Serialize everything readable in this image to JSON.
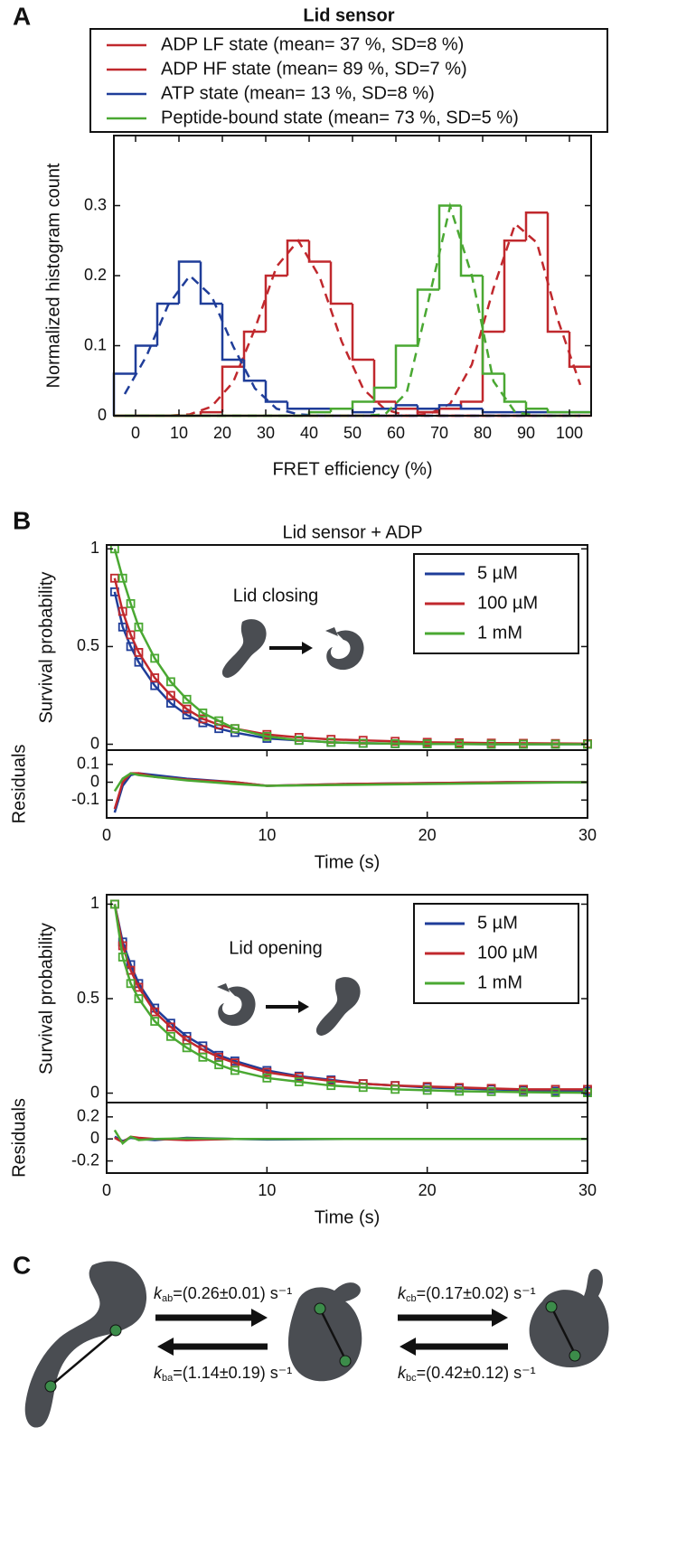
{
  "panel_labels": [
    "A",
    "B",
    "C"
  ],
  "chart_data": [
    {
      "type": "histogram",
      "title": "Lid sensor",
      "xlabel": "FRET efficiency (%)",
      "ylabel": "Normalized histogram count",
      "bins": [
        -5,
        0,
        5,
        10,
        15,
        20,
        25,
        30,
        35,
        40,
        45,
        50,
        55,
        60,
        65,
        70,
        75,
        80,
        85,
        90,
        95,
        100,
        105
      ],
      "fit_x": [
        -2.5,
        2.5,
        7.5,
        12.5,
        17.5,
        22.5,
        27.5,
        32.5,
        37.5,
        42.5,
        47.5,
        52.5,
        57.5,
        62.5,
        67.5,
        72.5,
        77.5,
        82.5,
        87.5,
        92.5,
        97.5,
        102.5
      ],
      "xlim": [
        -5,
        105
      ],
      "ylim": [
        0,
        0.4
      ],
      "xticks": [
        0,
        10,
        20,
        30,
        40,
        50,
        60,
        70,
        80,
        90,
        100
      ],
      "yticks": [
        0,
        0.1,
        0.2,
        0.3
      ],
      "series": [
        {
          "name": "ADP LF state (mean= 37 %, SD=8 %)",
          "color": "#c0282d",
          "values": [
            0,
            0,
            0,
            0,
            0.005,
            0.07,
            0.12,
            0.2,
            0.25,
            0.22,
            0.16,
            0.08,
            0.02,
            0.01,
            0.005,
            0,
            0,
            0,
            0,
            0,
            0,
            0
          ],
          "fit_values": [
            0,
            0,
            0,
            0.002,
            0.013,
            0.048,
            0.124,
            0.213,
            0.25,
            0.197,
            0.106,
            0.038,
            0.009,
            0,
            0,
            0,
            0,
            0,
            0,
            0,
            0,
            0
          ]
        },
        {
          "name": "ADP HF state (mean= 89 %, SD=7 %)",
          "color": "#c0282d",
          "values": [
            0,
            0,
            0,
            0,
            0,
            0,
            0,
            0,
            0,
            0,
            0,
            0,
            0,
            0,
            0.005,
            0.01,
            0.02,
            0.12,
            0.25,
            0.29,
            0.12,
            0.07
          ],
          "fit_values": [
            0,
            0,
            0,
            0,
            0,
            0,
            0,
            0,
            0,
            0,
            0,
            0,
            0,
            0,
            0.002,
            0.017,
            0.073,
            0.182,
            0.274,
            0.247,
            0.134,
            0.044
          ]
        },
        {
          "name": "ATP state (mean= 13 %, SD=8 %)",
          "color": "#1f3d99",
          "values": [
            0.06,
            0.1,
            0.16,
            0.22,
            0.16,
            0.08,
            0.05,
            0.02,
            0.01,
            0.01,
            0.01,
            0.005,
            0.01,
            0.015,
            0.01,
            0.015,
            0.01,
            0.005,
            0.005,
            0.005,
            0.005,
            0.005
          ],
          "fit_values": [
            0.031,
            0.085,
            0.158,
            0.2,
            0.171,
            0.099,
            0.039,
            0.01,
            0.002,
            0,
            0,
            0,
            0,
            0,
            0,
            0,
            0,
            0,
            0,
            0,
            0,
            0
          ]
        },
        {
          "name": "Peptide-bound state (mean= 73 %, SD=5 %)",
          "color": "#4aa832",
          "values": [
            0,
            0,
            0,
            0,
            0,
            0,
            0,
            0,
            0,
            0.005,
            0.01,
            0.02,
            0.04,
            0.1,
            0.18,
            0.3,
            0.2,
            0.06,
            0.02,
            0.01,
            0.005,
            0.005
          ],
          "fit_values": [
            0,
            0,
            0,
            0,
            0,
            0,
            0,
            0,
            0,
            0,
            0,
            0,
            0.002,
            0.033,
            0.164,
            0.299,
            0.2,
            0.049,
            0.005,
            0,
            0,
            0
          ]
        }
      ]
    },
    {
      "type": "survival",
      "title": "Lid sensor + ADP",
      "ylabel": "Survival probability",
      "annotation": "Lid closing",
      "x": [
        0.5,
        1,
        1.5,
        2,
        3,
        4,
        5,
        6,
        7,
        8,
        10,
        12,
        14,
        16,
        18,
        20,
        22,
        24,
        26,
        28,
        30
      ],
      "xlim": [
        0,
        30
      ],
      "ylim": [
        -0.03,
        1.02
      ],
      "yticks": [
        0,
        0.5,
        1
      ],
      "series": [
        {
          "name": "5 µM",
          "color": "#1f3d99",
          "values": [
            0.78,
            0.6,
            0.5,
            0.42,
            0.3,
            0.21,
            0.15,
            0.11,
            0.08,
            0.06,
            0.03,
            0.02,
            0.01,
            0.005,
            0.003,
            0.002,
            0.001,
            0,
            0,
            0,
            0
          ]
        },
        {
          "name": "100 µM",
          "color": "#c0282d",
          "values": [
            0.85,
            0.68,
            0.56,
            0.47,
            0.34,
            0.25,
            0.18,
            0.13,
            0.1,
            0.08,
            0.05,
            0.035,
            0.025,
            0.02,
            0.015,
            0.01,
            0.008,
            0.006,
            0.005,
            0.004,
            0.003
          ]
        },
        {
          "name": "1 mM",
          "color": "#4aa832",
          "values": [
            1,
            0.85,
            0.72,
            0.6,
            0.44,
            0.32,
            0.23,
            0.16,
            0.12,
            0.08,
            0.04,
            0.02,
            0.01,
            0.005,
            0.003,
            0.002,
            0.001,
            0,
            0,
            0,
            0
          ]
        }
      ]
    },
    {
      "type": "residuals",
      "xlabel": "Time (s)",
      "ylabel": "Residuals",
      "x": [
        0.5,
        1,
        1.5,
        2,
        3,
        5,
        8,
        10,
        15,
        20,
        25,
        30
      ],
      "xlim": [
        0,
        30
      ],
      "ylim": [
        -0.2,
        0.18
      ],
      "xticks": [
        0,
        10,
        20,
        30
      ],
      "yticks": [
        -0.1,
        0,
        0.1
      ],
      "series": [
        {
          "color": "#1f3d99",
          "values": [
            -0.17,
            -0.02,
            0.04,
            0.05,
            0.04,
            0.02,
            0,
            -0.02,
            -0.01,
            -0.005,
            0,
            0
          ]
        },
        {
          "color": "#c0282d",
          "values": [
            -0.15,
            0,
            0.05,
            0.05,
            0.03,
            0.015,
            0,
            -0.02,
            -0.01,
            -0.005,
            0,
            0
          ]
        },
        {
          "color": "#4aa832",
          "values": [
            -0.05,
            0.02,
            0.05,
            0.04,
            0.03,
            0.01,
            -0.01,
            -0.02,
            -0.015,
            -0.01,
            -0.005,
            0
          ]
        }
      ]
    },
    {
      "type": "survival",
      "ylabel": "Survival probability",
      "annotation": "Lid opening",
      "x": [
        0.5,
        1,
        1.5,
        2,
        3,
        4,
        5,
        6,
        7,
        8,
        10,
        12,
        14,
        16,
        18,
        20,
        22,
        24,
        26,
        28,
        30
      ],
      "xlim": [
        0,
        30
      ],
      "ylim": [
        -0.05,
        1.05
      ],
      "yticks": [
        0,
        0.5,
        1
      ],
      "series": [
        {
          "name": "5 µM",
          "color": "#1f3d99",
          "values": [
            1,
            0.8,
            0.68,
            0.58,
            0.45,
            0.37,
            0.3,
            0.25,
            0.2,
            0.17,
            0.12,
            0.09,
            0.07,
            0.05,
            0.04,
            0.03,
            0.025,
            0.02,
            0.015,
            0.01,
            0.01
          ]
        },
        {
          "name": "100 µM",
          "color": "#c0282d",
          "values": [
            1,
            0.78,
            0.65,
            0.56,
            0.43,
            0.35,
            0.28,
            0.23,
            0.19,
            0.16,
            0.11,
            0.085,
            0.065,
            0.05,
            0.04,
            0.035,
            0.03,
            0.025,
            0.02,
            0.02,
            0.02
          ]
        },
        {
          "name": "1 mM",
          "color": "#4aa832",
          "values": [
            1,
            0.72,
            0.58,
            0.5,
            0.38,
            0.3,
            0.24,
            0.19,
            0.15,
            0.12,
            0.08,
            0.06,
            0.04,
            0.03,
            0.02,
            0.015,
            0.01,
            0.008,
            0.005,
            0.003,
            0.002
          ]
        }
      ]
    },
    {
      "type": "residuals",
      "xlabel": "Time (s)",
      "ylabel": "Residuals",
      "x": [
        0.5,
        1,
        1.5,
        2,
        3,
        5,
        8,
        10,
        15,
        20,
        25,
        30
      ],
      "xlim": [
        0,
        30
      ],
      "ylim": [
        -0.31,
        0.33
      ],
      "xticks": [
        0,
        10,
        20,
        30
      ],
      "yticks": [
        -0.2,
        0,
        0.2
      ],
      "series": [
        {
          "color": "#1f3d99",
          "values": [
            0.02,
            -0.02,
            0.01,
            0,
            -0.01,
            0.01,
            0,
            -0.005,
            0,
            0,
            0,
            0
          ]
        },
        {
          "color": "#c0282d",
          "values": [
            0.01,
            -0.03,
            0.02,
            0.01,
            0,
            -0.01,
            0,
            0,
            0,
            0,
            0,
            0
          ]
        },
        {
          "color": "#4aa832",
          "values": [
            0.08,
            -0.04,
            0.02,
            -0.01,
            0,
            0.005,
            0,
            0,
            0,
            0,
            0,
            0
          ]
        }
      ]
    }
  ],
  "panel_c": {
    "rates": [
      {
        "symbol": "k",
        "subscript": "ab",
        "value": "=(0.26±0.01) s⁻¹"
      },
      {
        "symbol": "k",
        "subscript": "ba",
        "value": "=(1.14±0.19) s⁻¹"
      },
      {
        "symbol": "k",
        "subscript": "cb",
        "value": "=(0.17±0.02) s⁻¹"
      },
      {
        "symbol": "k",
        "subscript": "bc",
        "value": "=(0.42±0.12) s⁻¹"
      }
    ]
  }
}
